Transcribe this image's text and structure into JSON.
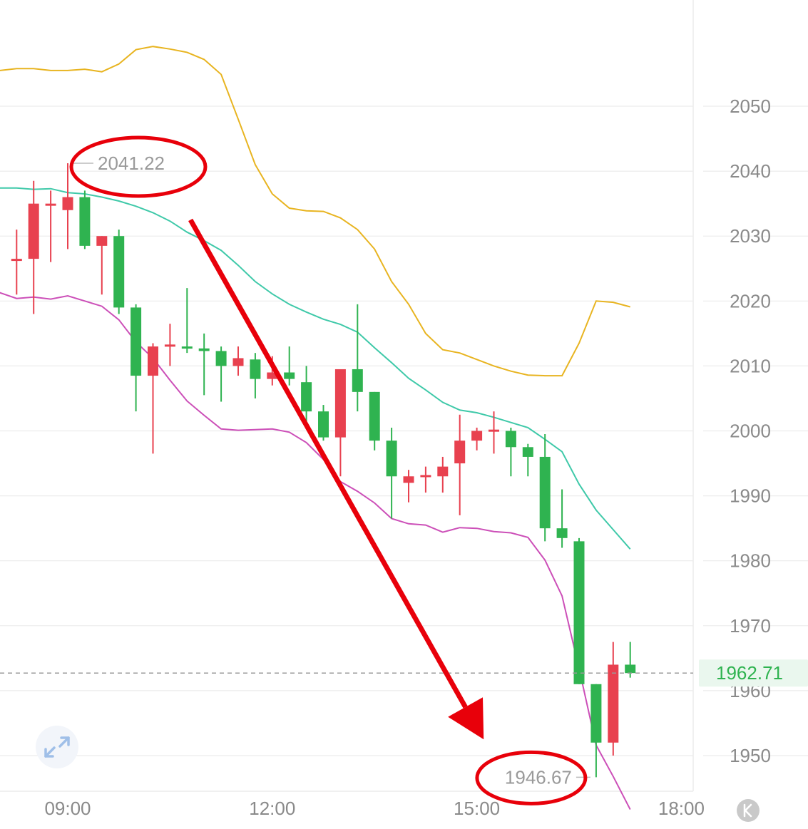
{
  "colors": {
    "up": "#e8414f",
    "down": "#2fb350",
    "upper_band": "#e8b420",
    "middle_band": "#3fc9a9",
    "lower_band": "#cc4fb8",
    "annotation": "#e8000a",
    "grid": "#ececec",
    "axis_text": "#8a8a8a",
    "current_price_bg": "#eaf7ee"
  },
  "chart_data": {
    "type": "candlestick",
    "y_axis": {
      "ticks": [
        "1950",
        "1960",
        "1970",
        "1980",
        "1990",
        "2000",
        "2010",
        "2020",
        "2030",
        "2040",
        "2050"
      ],
      "range": [
        1944,
        2066
      ]
    },
    "x_axis": {
      "ticks": [
        "09:00",
        "12:00",
        "15:00",
        "18:00"
      ],
      "tick_hours": [
        9,
        12,
        15,
        18
      ]
    },
    "candles": [
      {
        "t": 8.25,
        "o": 2026.5,
        "h": 2031,
        "l": 2021,
        "c": 2026.5
      },
      {
        "t": 8.5,
        "o": 2026.5,
        "h": 2038.5,
        "l": 2018,
        "c": 2035
      },
      {
        "t": 8.75,
        "o": 2035,
        "h": 2037,
        "l": 2026,
        "c": 2035
      },
      {
        "t": 9.0,
        "o": 2034,
        "h": 2041.22,
        "l": 2028,
        "c": 2036
      },
      {
        "t": 9.25,
        "o": 2036,
        "h": 2037,
        "l": 2028,
        "c": 2028.5
      },
      {
        "t": 9.5,
        "o": 2028.5,
        "h": 2030,
        "l": 2021,
        "c": 2030
      },
      {
        "t": 9.75,
        "o": 2030,
        "h": 2031,
        "l": 2018,
        "c": 2019
      },
      {
        "t": 10.0,
        "o": 2019,
        "h": 2019.5,
        "l": 2003,
        "c": 2008.5
      },
      {
        "t": 10.25,
        "o": 2008.5,
        "h": 2013.5,
        "l": 1996.5,
        "c": 2013
      },
      {
        "t": 10.5,
        "o": 2013,
        "h": 2016.5,
        "l": 2010,
        "c": 2013.3
      },
      {
        "t": 10.75,
        "o": 2013,
        "h": 2022,
        "l": 2012,
        "c": 2012.7
      },
      {
        "t": 11.0,
        "o": 2012.7,
        "h": 2015,
        "l": 2005.5,
        "c": 2012.3
      },
      {
        "t": 11.25,
        "o": 2012.3,
        "h": 2013,
        "l": 2004.5,
        "c": 2010
      },
      {
        "t": 11.5,
        "o": 2010,
        "h": 2013,
        "l": 2008.5,
        "c": 2011.2
      },
      {
        "t": 11.75,
        "o": 2011,
        "h": 2012,
        "l": 2005,
        "c": 2008
      },
      {
        "t": 12.0,
        "o": 2008,
        "h": 2011.5,
        "l": 2007,
        "c": 2009
      },
      {
        "t": 12.25,
        "o": 2009,
        "h": 2013,
        "l": 2007,
        "c": 2008
      },
      {
        "t": 12.5,
        "o": 2007.5,
        "h": 2010,
        "l": 2001,
        "c": 2003
      },
      {
        "t": 12.75,
        "o": 2003,
        "h": 2004,
        "l": 1998.5,
        "c": 1999
      },
      {
        "t": 13.0,
        "o": 1999,
        "h": 2009.5,
        "l": 1993,
        "c": 2009.5
      },
      {
        "t": 13.25,
        "o": 2009.5,
        "h": 2019.5,
        "l": 2003,
        "c": 2006
      },
      {
        "t": 13.5,
        "o": 2006,
        "h": 2006,
        "l": 1997,
        "c": 1998.5
      },
      {
        "t": 13.75,
        "o": 1998.5,
        "h": 2000.5,
        "l": 1986.5,
        "c": 1993
      },
      {
        "t": 14.0,
        "o": 1992,
        "h": 1994,
        "l": 1989,
        "c": 1993
      },
      {
        "t": 14.25,
        "o": 1993,
        "h": 1994.5,
        "l": 1990.5,
        "c": 1993.2
      },
      {
        "t": 14.5,
        "o": 1993,
        "h": 1996,
        "l": 1990.5,
        "c": 1994.5
      },
      {
        "t": 14.75,
        "o": 1995,
        "h": 2002.5,
        "l": 1987,
        "c": 1998.5
      },
      {
        "t": 15.0,
        "o": 1998.5,
        "h": 2000.5,
        "l": 1997,
        "c": 2000
      },
      {
        "t": 15.25,
        "o": 2000,
        "h": 2003,
        "l": 1996.5,
        "c": 2000.2
      },
      {
        "t": 15.5,
        "o": 2000,
        "h": 2000.5,
        "l": 1993,
        "c": 1997.5
      },
      {
        "t": 15.75,
        "o": 1997.5,
        "h": 1998,
        "l": 1993,
        "c": 1996
      },
      {
        "t": 16.0,
        "o": 1996,
        "h": 1999.5,
        "l": 1983,
        "c": 1985
      },
      {
        "t": 16.25,
        "o": 1985,
        "h": 1991,
        "l": 1982,
        "c": 1983.5
      },
      {
        "t": 16.5,
        "o": 1983,
        "h": 1983.5,
        "l": 1961,
        "c": 1961
      },
      {
        "t": 16.75,
        "o": 1961,
        "h": 1961,
        "l": 1946.67,
        "c": 1952
      },
      {
        "t": 17.0,
        "o": 1952,
        "h": 1967.5,
        "l": 1950,
        "c": 1964
      },
      {
        "t": 17.25,
        "o": 1964,
        "h": 1967.5,
        "l": 1962,
        "c": 1962.71
      }
    ],
    "upper_band": [
      [
        8.0,
        2055.5
      ],
      [
        8.25,
        2055.8
      ],
      [
        8.5,
        2055.8
      ],
      [
        8.75,
        2055.5
      ],
      [
        9.0,
        2055.5
      ],
      [
        9.25,
        2055.7
      ],
      [
        9.5,
        2055.3
      ],
      [
        9.75,
        2056.5
      ],
      [
        10.0,
        2058.7
      ],
      [
        10.25,
        2059.2
      ],
      [
        10.5,
        2058.8
      ],
      [
        10.75,
        2058.3
      ],
      [
        11.0,
        2057.2
      ],
      [
        11.25,
        2054.9
      ],
      [
        11.5,
        2048
      ],
      [
        11.75,
        2041
      ],
      [
        12.0,
        2036.5
      ],
      [
        12.25,
        2034.3
      ],
      [
        12.5,
        2033.9
      ],
      [
        12.75,
        2033.8
      ],
      [
        13.0,
        2032.8
      ],
      [
        13.25,
        2031
      ],
      [
        13.5,
        2028
      ],
      [
        13.75,
        2023
      ],
      [
        14.0,
        2019.5
      ],
      [
        14.25,
        2015
      ],
      [
        14.5,
        2012.5
      ],
      [
        14.75,
        2012
      ],
      [
        15.0,
        2011
      ],
      [
        15.25,
        2010
      ],
      [
        15.5,
        2009.2
      ],
      [
        15.75,
        2008.6
      ],
      [
        16.0,
        2008.5
      ],
      [
        16.25,
        2008.5
      ],
      [
        16.5,
        2013.5
      ],
      [
        16.75,
        2020
      ],
      [
        17.0,
        2019.8
      ],
      [
        17.25,
        2019.1
      ]
    ],
    "middle_band": [
      [
        8.0,
        2037.4
      ],
      [
        8.25,
        2037.4
      ],
      [
        8.5,
        2037.2
      ],
      [
        8.75,
        2037.3
      ],
      [
        9.0,
        2036.7
      ],
      [
        9.25,
        2036.5
      ],
      [
        9.5,
        2036
      ],
      [
        9.75,
        2035.4
      ],
      [
        10.0,
        2034.6
      ],
      [
        10.25,
        2033.6
      ],
      [
        10.5,
        2032.3
      ],
      [
        10.75,
        2030.6
      ],
      [
        11.0,
        2029.3
      ],
      [
        11.25,
        2027.8
      ],
      [
        11.5,
        2025.5
      ],
      [
        11.75,
        2023
      ],
      [
        12.0,
        2021.1
      ],
      [
        12.25,
        2019.5
      ],
      [
        12.5,
        2018.3
      ],
      [
        12.75,
        2017.2
      ],
      [
        13.0,
        2016.4
      ],
      [
        13.25,
        2015.2
      ],
      [
        13.5,
        2012.8
      ],
      [
        13.75,
        2010.5
      ],
      [
        14.0,
        2008.1
      ],
      [
        14.25,
        2006.3
      ],
      [
        14.5,
        2004.4
      ],
      [
        14.75,
        2003.2
      ],
      [
        15.0,
        2002.8
      ],
      [
        15.25,
        2002.1
      ],
      [
        15.5,
        2001.3
      ],
      [
        15.75,
        2000.5
      ],
      [
        16.0,
        1998.7
      ],
      [
        16.25,
        1996.8
      ],
      [
        16.5,
        1991.8
      ],
      [
        16.75,
        1987.8
      ],
      [
        17.0,
        1984.8
      ],
      [
        17.25,
        1981.8
      ]
    ],
    "lower_band": [
      [
        8.0,
        2021.3
      ],
      [
        8.25,
        2020.4
      ],
      [
        8.5,
        2020.6
      ],
      [
        8.75,
        2020.3
      ],
      [
        9.0,
        2020.8
      ],
      [
        9.25,
        2020
      ],
      [
        9.5,
        2019.2
      ],
      [
        9.75,
        2017.1
      ],
      [
        10.0,
        2013.7
      ],
      [
        10.25,
        2011.2
      ],
      [
        10.5,
        2007.8
      ],
      [
        10.75,
        2004.6
      ],
      [
        11.0,
        2002.4
      ],
      [
        11.25,
        2000.3
      ],
      [
        11.5,
        2000.1
      ],
      [
        11.75,
        2000.2
      ],
      [
        12.0,
        2000.3
      ],
      [
        12.25,
        1999.8
      ],
      [
        12.5,
        1998.2
      ],
      [
        12.75,
        1995.6
      ],
      [
        13.0,
        1992.2
      ],
      [
        13.25,
        1990.7
      ],
      [
        13.5,
        1988.9
      ],
      [
        13.75,
        1986.5
      ],
      [
        14.0,
        1985.7
      ],
      [
        14.25,
        1985.5
      ],
      [
        14.5,
        1984.4
      ],
      [
        14.75,
        1985.1
      ],
      [
        15.0,
        1985
      ],
      [
        15.25,
        1984.5
      ],
      [
        15.5,
        1984.3
      ],
      [
        15.75,
        1983.6
      ],
      [
        16.0,
        1980.1
      ],
      [
        16.25,
        1974.6
      ],
      [
        16.5,
        1963.4
      ],
      [
        16.75,
        1951.6
      ],
      [
        17.0,
        1946.8
      ],
      [
        17.25,
        1941.7
      ]
    ],
    "current_price": {
      "value": 1962.71,
      "label": "1962.71"
    },
    "annotations": [
      {
        "label": "2041.22",
        "t": 9.0,
        "value": 2041.22
      },
      {
        "label": "1946.67",
        "t": 16.75,
        "value": 1946.67
      }
    ],
    "arrow": {
      "from": {
        "t": 10.8,
        "value": 2032.5
      },
      "to": {
        "t": 15.1,
        "value": 1952.5
      }
    }
  }
}
